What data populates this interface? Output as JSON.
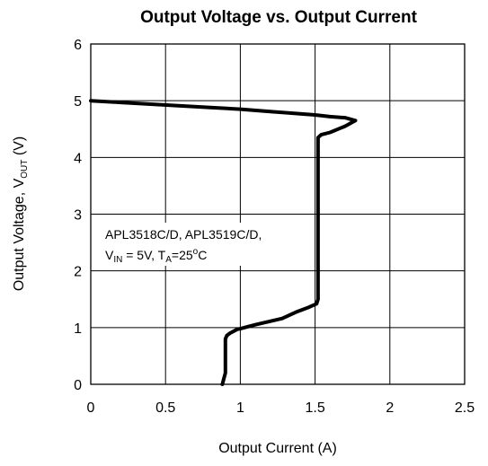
{
  "chart_data": {
    "type": "line",
    "title": "Output Voltage vs. Output Current",
    "xlabel": "Output Current (A)",
    "ylabel": {
      "prefix": "Output Voltage, V",
      "subscript": "OUT",
      "suffix": " (V)"
    },
    "xlim": [
      0,
      2.5
    ],
    "ylim": [
      0,
      6
    ],
    "x_ticks": [
      "0",
      "0.5",
      "1",
      "1.5",
      "2",
      "2.5"
    ],
    "y_ticks": [
      "0",
      "1",
      "2",
      "3",
      "4",
      "5",
      "6"
    ],
    "grid": true,
    "annotation": {
      "line1": "APL3518C/D, APL3519C/D,",
      "vin_symbol": "V",
      "vin_sub": "IN",
      "vin_value": " = 5V, T",
      "ta_sub": "A",
      "ta_value": "=25",
      "degree": "o",
      "unit": "C"
    },
    "series": [
      {
        "color": "#000000",
        "x": [
          0.0,
          0.2,
          0.4,
          0.6,
          0.8,
          1.0,
          1.2,
          1.4,
          1.5,
          1.6,
          1.7,
          1.77,
          1.7,
          1.6,
          1.54,
          1.52,
          1.52,
          1.52,
          1.52,
          1.52,
          1.51,
          1.46,
          1.38,
          1.28,
          1.1,
          1.0,
          0.98,
          0.93,
          0.91,
          0.9,
          0.9,
          0.9,
          0.9,
          0.89,
          0.88
        ],
        "y": [
          5.0,
          4.97,
          4.94,
          4.91,
          4.88,
          4.85,
          4.81,
          4.77,
          4.75,
          4.72,
          4.7,
          4.65,
          4.55,
          4.44,
          4.4,
          4.35,
          4.0,
          3.0,
          2.0,
          1.5,
          1.42,
          1.36,
          1.28,
          1.16,
          1.05,
          0.98,
          0.97,
          0.9,
          0.86,
          0.8,
          0.6,
          0.4,
          0.2,
          0.1,
          0.0
        ]
      }
    ]
  }
}
